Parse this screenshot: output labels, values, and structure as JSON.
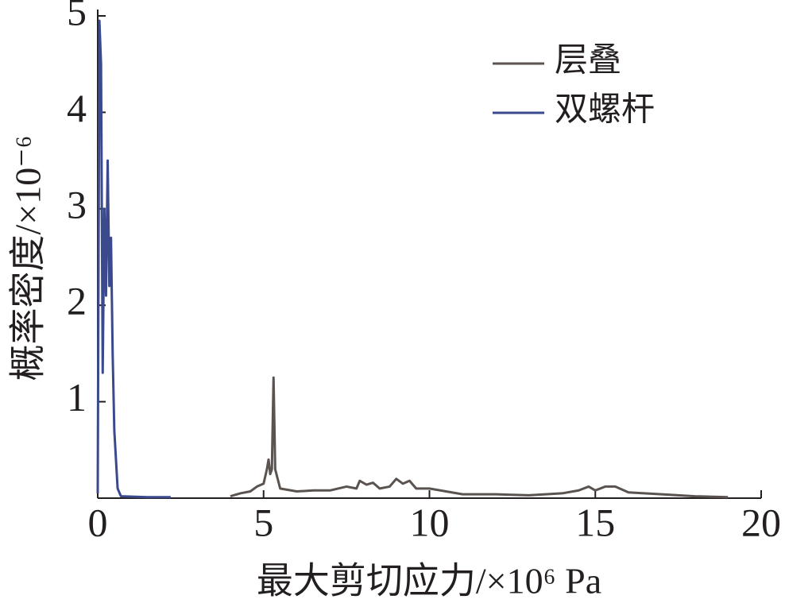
{
  "chart_data": {
    "type": "line",
    "xlabel": "最大剪切应力/×10⁶ Pa",
    "ylabel": "概率密度/×10⁻⁶",
    "xlim": [
      0,
      20
    ],
    "xticks": [
      0,
      5,
      10,
      15,
      20
    ],
    "ylim": [
      0,
      5
    ],
    "yticks": [
      1,
      2,
      3,
      4,
      5
    ],
    "legend": "upper right",
    "series": [
      {
        "name": "层叠",
        "color": "#5a5350",
        "x": [
          4.0,
          4.3,
          4.6,
          4.8,
          5.0,
          5.1,
          5.15,
          5.2,
          5.25,
          5.3,
          5.35,
          5.5,
          6.0,
          6.5,
          7.0,
          7.5,
          7.8,
          7.9,
          8.1,
          8.3,
          8.5,
          8.8,
          9.0,
          9.2,
          9.4,
          9.6,
          10.0,
          10.5,
          11.0,
          12.0,
          13.0,
          14.0,
          14.5,
          14.8,
          15.0,
          15.3,
          15.6,
          16.0,
          17.0,
          18.0,
          19.0
        ],
        "values": [
          0.02,
          0.05,
          0.07,
          0.12,
          0.15,
          0.3,
          0.4,
          0.25,
          0.3,
          1.25,
          0.3,
          0.1,
          0.07,
          0.08,
          0.08,
          0.12,
          0.1,
          0.18,
          0.14,
          0.16,
          0.1,
          0.12,
          0.2,
          0.15,
          0.18,
          0.1,
          0.1,
          0.07,
          0.04,
          0.04,
          0.03,
          0.05,
          0.08,
          0.12,
          0.08,
          0.12,
          0.12,
          0.06,
          0.04,
          0.02,
          0.01
        ]
      },
      {
        "name": "双螺杆",
        "color": "#3a4a8c",
        "x": [
          0.0,
          0.05,
          0.1,
          0.15,
          0.2,
          0.25,
          0.3,
          0.35,
          0.4,
          0.45,
          0.5,
          0.6,
          0.7,
          1.5,
          2.2
        ],
        "values": [
          0.05,
          4.95,
          4.5,
          1.3,
          3.0,
          2.1,
          3.5,
          2.2,
          2.7,
          1.5,
          0.7,
          0.1,
          0.02,
          0.01,
          0.01
        ]
      }
    ]
  }
}
